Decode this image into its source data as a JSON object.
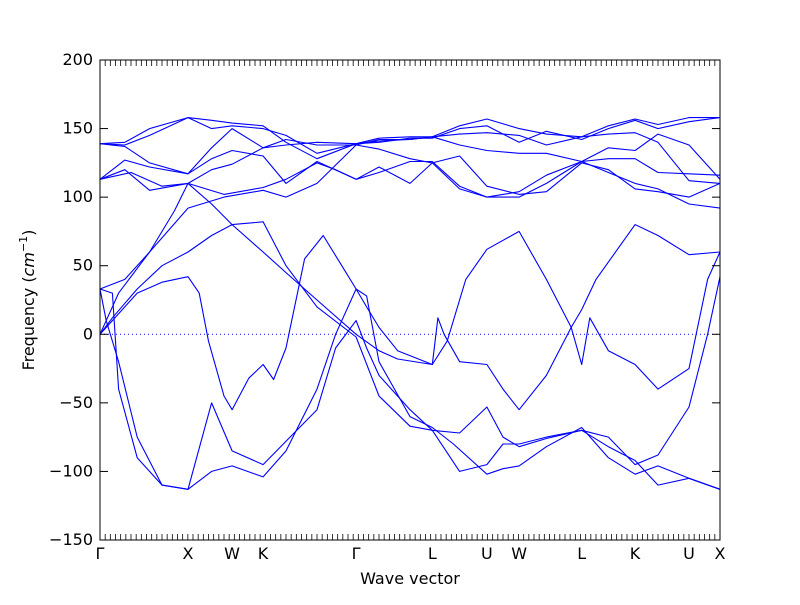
{
  "chart_data": {
    "type": "line",
    "title": "",
    "xlabel": "Wave vector",
    "ylabel": "Frequency ($cm^{-1}$)",
    "ylim": [
      -150,
      200
    ],
    "yticks": [
      -150,
      -100,
      -50,
      0,
      50,
      100,
      150,
      200
    ],
    "xlim": [
      0,
      1
    ],
    "zero_line": true,
    "grid": false,
    "x_ticks": [
      {
        "label": "Γ",
        "x": 0.0
      },
      {
        "label": "X",
        "x": 0.142
      },
      {
        "label": "W",
        "x": 0.213
      },
      {
        "label": "K",
        "x": 0.263
      },
      {
        "label": "Γ",
        "x": 0.413
      },
      {
        "label": "L",
        "x": 0.536
      },
      {
        "label": "U",
        "x": 0.624
      },
      {
        "label": "W",
        "x": 0.676
      },
      {
        "label": "L",
        "x": 0.777
      },
      {
        "label": "K",
        "x": 0.863
      },
      {
        "label": "U",
        "x": 0.95
      },
      {
        "label": "X",
        "x": 1.0
      }
    ],
    "line_color": "#0000ff",
    "series": [
      {
        "values": [
          [
            0,
            0
          ],
          [
            0.02,
            12
          ],
          [
            0.06,
            33
          ],
          [
            0.1,
            50
          ],
          [
            0.142,
            60
          ],
          [
            0.18,
            72
          ],
          [
            0.213,
            80
          ],
          [
            0.263,
            82
          ],
          [
            0.3,
            50
          ],
          [
            0.35,
            20
          ],
          [
            0.413,
            -2
          ],
          [
            0.45,
            -45
          ],
          [
            0.5,
            -67
          ],
          [
            0.536,
            -70
          ],
          [
            0.58,
            -72
          ],
          [
            0.624,
            -53
          ],
          [
            0.65,
            -75
          ],
          [
            0.676,
            -82
          ],
          [
            0.72,
            -76
          ],
          [
            0.777,
            -70
          ],
          [
            0.82,
            -75
          ],
          [
            0.863,
            -95
          ],
          [
            0.9,
            -88
          ],
          [
            0.95,
            -53
          ],
          [
            0.98,
            0
          ],
          [
            1,
            42
          ]
        ]
      },
      {
        "values": [
          [
            0,
            0
          ],
          [
            0.02,
            10
          ],
          [
            0.06,
            30
          ],
          [
            0.1,
            38
          ],
          [
            0.142,
            42
          ],
          [
            0.16,
            30
          ],
          [
            0.175,
            -5
          ],
          [
            0.2,
            -45
          ],
          [
            0.213,
            -55
          ],
          [
            0.24,
            -32
          ],
          [
            0.263,
            -22
          ],
          [
            0.28,
            -33
          ],
          [
            0.3,
            -10
          ],
          [
            0.33,
            55
          ],
          [
            0.36,
            72
          ],
          [
            0.39,
            50
          ],
          [
            0.413,
            33
          ],
          [
            0.43,
            20
          ],
          [
            0.45,
            5
          ],
          [
            0.48,
            -12
          ],
          [
            0.536,
            -22
          ],
          [
            0.545,
            12
          ],
          [
            0.555,
            0
          ],
          [
            0.58,
            -20
          ],
          [
            0.624,
            -22
          ],
          [
            0.65,
            -40
          ],
          [
            0.676,
            -55
          ],
          [
            0.72,
            -30
          ],
          [
            0.76,
            5
          ],
          [
            0.777,
            -22
          ],
          [
            0.79,
            12
          ],
          [
            0.82,
            -12
          ],
          [
            0.863,
            -22
          ],
          [
            0.9,
            -40
          ],
          [
            0.95,
            -25
          ],
          [
            0.98,
            40
          ],
          [
            1,
            60
          ]
        ]
      },
      {
        "values": [
          [
            0,
            33
          ],
          [
            0.02,
            30
          ],
          [
            0.03,
            -40
          ],
          [
            0.06,
            -90
          ],
          [
            0.1,
            -110
          ],
          [
            0.142,
            -113
          ],
          [
            0.18,
            -100
          ],
          [
            0.213,
            -96
          ],
          [
            0.263,
            -104
          ],
          [
            0.3,
            -85
          ],
          [
            0.35,
            -40
          ],
          [
            0.38,
            0
          ],
          [
            0.413,
            33
          ],
          [
            0.43,
            28
          ],
          [
            0.45,
            -20
          ],
          [
            0.5,
            -60
          ],
          [
            0.536,
            -68
          ],
          [
            0.57,
            -80
          ],
          [
            0.624,
            -102
          ],
          [
            0.65,
            -98
          ],
          [
            0.676,
            -96
          ],
          [
            0.72,
            -82
          ],
          [
            0.777,
            -68
          ],
          [
            0.82,
            -90
          ],
          [
            0.863,
            -102
          ],
          [
            0.9,
            -96
          ],
          [
            0.95,
            -105
          ],
          [
            1,
            -113
          ]
        ]
      },
      {
        "values": [
          [
            0,
            33
          ],
          [
            0.01,
            10
          ],
          [
            0.03,
            -20
          ],
          [
            0.06,
            -75
          ],
          [
            0.1,
            -110
          ],
          [
            0.142,
            -113
          ],
          [
            0.18,
            -50
          ],
          [
            0.213,
            -85
          ],
          [
            0.263,
            -95
          ],
          [
            0.3,
            -78
          ],
          [
            0.35,
            -55
          ],
          [
            0.38,
            -10
          ],
          [
            0.413,
            10
          ],
          [
            0.43,
            -10
          ],
          [
            0.45,
            -30
          ],
          [
            0.5,
            -55
          ],
          [
            0.536,
            -70
          ],
          [
            0.58,
            -100
          ],
          [
            0.624,
            -95
          ],
          [
            0.65,
            -80
          ],
          [
            0.676,
            -80
          ],
          [
            0.72,
            -75
          ],
          [
            0.777,
            -70
          ],
          [
            0.82,
            -82
          ],
          [
            0.863,
            -92
          ],
          [
            0.9,
            -110
          ],
          [
            0.95,
            -105
          ],
          [
            1,
            -113
          ]
        ]
      },
      {
        "values": [
          [
            0,
            0
          ],
          [
            0.03,
            30
          ],
          [
            0.08,
            60
          ],
          [
            0.12,
            90
          ],
          [
            0.142,
            110
          ],
          [
            0.18,
            95
          ],
          [
            0.213,
            80
          ],
          [
            0.263,
            60
          ],
          [
            0.3,
            45
          ],
          [
            0.35,
            25
          ],
          [
            0.413,
            0
          ],
          [
            0.45,
            -12
          ],
          [
            0.48,
            -18
          ],
          [
            0.536,
            -22
          ],
          [
            0.56,
            -5
          ],
          [
            0.59,
            40
          ],
          [
            0.624,
            62
          ],
          [
            0.676,
            75
          ],
          [
            0.72,
            40
          ],
          [
            0.76,
            5
          ],
          [
            0.777,
            18
          ],
          [
            0.8,
            40
          ],
          [
            0.863,
            80
          ],
          [
            0.9,
            72
          ],
          [
            0.95,
            58
          ],
          [
            1,
            60
          ]
        ]
      },
      {
        "values": [
          [
            0,
            33
          ],
          [
            0.04,
            40
          ],
          [
            0.08,
            60
          ],
          [
            0.142,
            92
          ],
          [
            0.2,
            100
          ],
          [
            0.263,
            105
          ],
          [
            0.3,
            100
          ],
          [
            0.35,
            110
          ],
          [
            0.413,
            138
          ],
          [
            0.45,
            135
          ],
          [
            0.5,
            128
          ],
          [
            0.536,
            125
          ],
          [
            0.58,
            106
          ],
          [
            0.624,
            100
          ],
          [
            0.676,
            100
          ],
          [
            0.72,
            110
          ],
          [
            0.777,
            126
          ],
          [
            0.82,
            118
          ],
          [
            0.863,
            110
          ],
          [
            0.9,
            106
          ],
          [
            0.95,
            95
          ],
          [
            1,
            92
          ]
        ]
      },
      {
        "values": [
          [
            0,
            113
          ],
          [
            0.04,
            120
          ],
          [
            0.08,
            105
          ],
          [
            0.142,
            110
          ],
          [
            0.2,
            102
          ],
          [
            0.263,
            107
          ],
          [
            0.3,
            113
          ],
          [
            0.35,
            125
          ],
          [
            0.38,
            120
          ],
          [
            0.413,
            113
          ],
          [
            0.45,
            122
          ],
          [
            0.5,
            110
          ],
          [
            0.536,
            125
          ],
          [
            0.58,
            130
          ],
          [
            0.624,
            108
          ],
          [
            0.676,
            102
          ],
          [
            0.72,
            104
          ],
          [
            0.777,
            125
          ],
          [
            0.82,
            120
          ],
          [
            0.863,
            106
          ],
          [
            0.9,
            104
          ],
          [
            0.95,
            100
          ],
          [
            1,
            110
          ]
        ]
      },
      {
        "values": [
          [
            0,
            113
          ],
          [
            0.04,
            127
          ],
          [
            0.08,
            122
          ],
          [
            0.142,
            117
          ],
          [
            0.18,
            128
          ],
          [
            0.213,
            134
          ],
          [
            0.263,
            130
          ],
          [
            0.3,
            110
          ],
          [
            0.35,
            126
          ],
          [
            0.413,
            113
          ],
          [
            0.45,
            118
          ],
          [
            0.5,
            126
          ],
          [
            0.536,
            126
          ],
          [
            0.58,
            108
          ],
          [
            0.624,
            100
          ],
          [
            0.676,
            104
          ],
          [
            0.72,
            116
          ],
          [
            0.777,
            126
          ],
          [
            0.82,
            128
          ],
          [
            0.863,
            128
          ],
          [
            0.9,
            118
          ],
          [
            0.95,
            117
          ],
          [
            1,
            116
          ]
        ]
      },
      {
        "values": [
          [
            0,
            139
          ],
          [
            0.04,
            137
          ],
          [
            0.08,
            125
          ],
          [
            0.142,
            117
          ],
          [
            0.18,
            136
          ],
          [
            0.213,
            150
          ],
          [
            0.263,
            136
          ],
          [
            0.3,
            142
          ],
          [
            0.35,
            138
          ],
          [
            0.413,
            138
          ],
          [
            0.45,
            142
          ],
          [
            0.5,
            142
          ],
          [
            0.536,
            144
          ],
          [
            0.58,
            138
          ],
          [
            0.624,
            134
          ],
          [
            0.676,
            132
          ],
          [
            0.72,
            132
          ],
          [
            0.777,
            126
          ],
          [
            0.82,
            136
          ],
          [
            0.863,
            134
          ],
          [
            0.9,
            146
          ],
          [
            0.95,
            138
          ],
          [
            1,
            113
          ]
        ]
      },
      {
        "values": [
          [
            0,
            139
          ],
          [
            0.04,
            138
          ],
          [
            0.08,
            145
          ],
          [
            0.142,
            158
          ],
          [
            0.18,
            150
          ],
          [
            0.213,
            152
          ],
          [
            0.263,
            150
          ],
          [
            0.3,
            145
          ],
          [
            0.35,
            132
          ],
          [
            0.413,
            139
          ],
          [
            0.45,
            140
          ],
          [
            0.5,
            143
          ],
          [
            0.536,
            143
          ],
          [
            0.58,
            150
          ],
          [
            0.624,
            152
          ],
          [
            0.676,
            140
          ],
          [
            0.72,
            148
          ],
          [
            0.777,
            142
          ],
          [
            0.82,
            150
          ],
          [
            0.863,
            156
          ],
          [
            0.9,
            150
          ],
          [
            0.95,
            155
          ],
          [
            1,
            158
          ]
        ]
      },
      {
        "values": [
          [
            0,
            139
          ],
          [
            0.04,
            140
          ],
          [
            0.08,
            150
          ],
          [
            0.142,
            158
          ],
          [
            0.18,
            156
          ],
          [
            0.213,
            154
          ],
          [
            0.263,
            152
          ],
          [
            0.3,
            140
          ],
          [
            0.35,
            128
          ],
          [
            0.413,
            139
          ],
          [
            0.45,
            141
          ],
          [
            0.5,
            142
          ],
          [
            0.536,
            144
          ],
          [
            0.58,
            152
          ],
          [
            0.624,
            157
          ],
          [
            0.676,
            150
          ],
          [
            0.72,
            146
          ],
          [
            0.777,
            144
          ],
          [
            0.82,
            152
          ],
          [
            0.863,
            157
          ],
          [
            0.9,
            153
          ],
          [
            0.95,
            158
          ],
          [
            1,
            158
          ]
        ]
      },
      {
        "values": [
          [
            0,
            113
          ],
          [
            0.05,
            118
          ],
          [
            0.1,
            108
          ],
          [
            0.142,
            110
          ],
          [
            0.18,
            120
          ],
          [
            0.213,
            124
          ],
          [
            0.263,
            136
          ],
          [
            0.3,
            138
          ],
          [
            0.35,
            140
          ],
          [
            0.413,
            139
          ],
          [
            0.45,
            143
          ],
          [
            0.5,
            144
          ],
          [
            0.536,
            144
          ],
          [
            0.58,
            146
          ],
          [
            0.624,
            147
          ],
          [
            0.676,
            145
          ],
          [
            0.72,
            138
          ],
          [
            0.777,
            144
          ],
          [
            0.82,
            146
          ],
          [
            0.863,
            147
          ],
          [
            0.9,
            140
          ],
          [
            0.95,
            112
          ],
          [
            1,
            110
          ]
        ]
      }
    ]
  }
}
